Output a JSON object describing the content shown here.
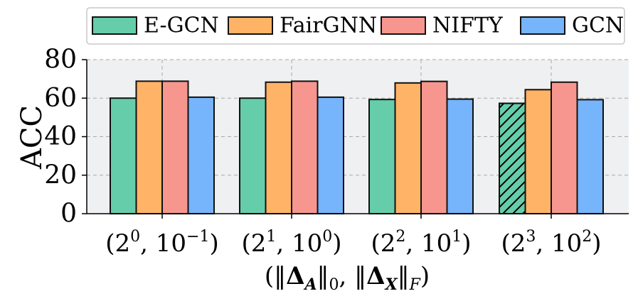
{
  "chart_data": {
    "type": "bar",
    "categories": [
      {
        "base1": "2",
        "exp1": "0",
        "base2": "10",
        "exp2": "−1"
      },
      {
        "base1": "2",
        "exp1": "1",
        "base2": "10",
        "exp2": "0"
      },
      {
        "base1": "2",
        "exp1": "2",
        "base2": "10",
        "exp2": "1"
      },
      {
        "base1": "2",
        "exp1": "3",
        "base2": "10",
        "exp2": "2"
      }
    ],
    "series": [
      {
        "name": "E-GCN",
        "color": "#66cdaa",
        "values": [
          60,
          60,
          59.3,
          57.3
        ],
        "hatch": [
          false,
          false,
          false,
          true
        ]
      },
      {
        "name": "FairGNN",
        "color": "#ffb366",
        "values": [
          68.8,
          68.3,
          67.9,
          64.4
        ],
        "hatch": [
          false,
          false,
          false,
          false
        ]
      },
      {
        "name": "NIFTY",
        "color": "#f7968f",
        "values": [
          68.8,
          68.8,
          68.7,
          68.3
        ],
        "hatch": [
          false,
          false,
          false,
          false
        ]
      },
      {
        "name": "GCN",
        "color": "#76b4fb",
        "values": [
          60.5,
          60.5,
          59.5,
          59.2
        ],
        "hatch": [
          false,
          false,
          false,
          false
        ]
      }
    ],
    "ylabel": "ACC",
    "ylim": [
      0,
      80
    ],
    "yticks": [
      "0",
      "20",
      "40",
      "60",
      "80"
    ],
    "xlabel": {
      "open": "(‖",
      "delta1": "Δ",
      "sub1": "A",
      "mid": "‖",
      "norm1": "0",
      "sep": ", ‖",
      "delta2": "Δ",
      "sub2": "X",
      "mid2": "‖",
      "norm2": "F",
      "close": ")"
    },
    "grid": true,
    "legend_position": "top"
  }
}
